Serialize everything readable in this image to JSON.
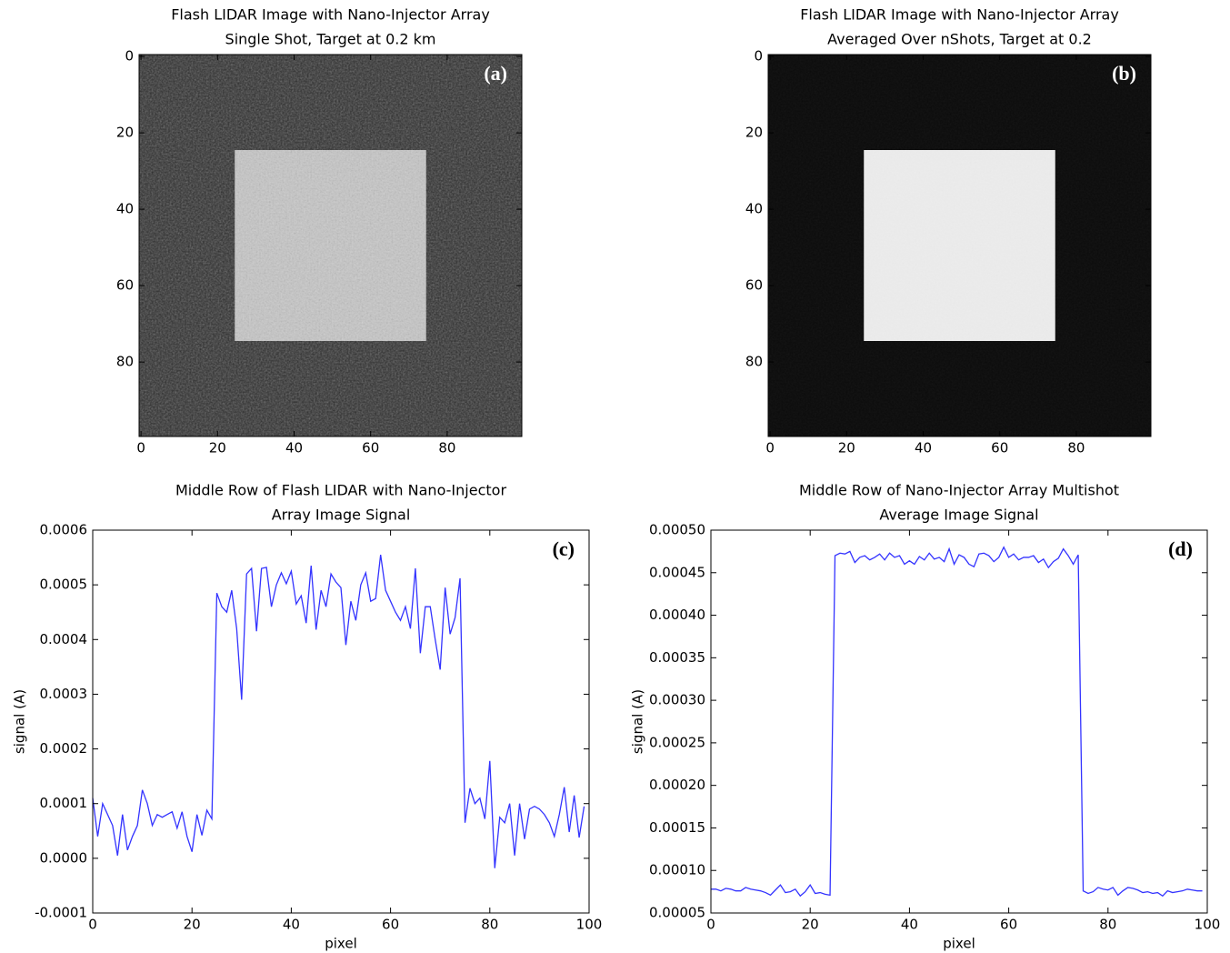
{
  "chart_data": [
    {
      "type": "image",
      "title": [
        "Flash LIDAR Image with Nano-Injector Array",
        "Single Shot, Target at 0.2 km"
      ],
      "panel_label": "(a)",
      "background_color": "#2b2b2b",
      "target": {
        "x": [
          24.5,
          74.5
        ],
        "y": [
          24.5,
          74.5
        ],
        "color": "#c6c6c6"
      },
      "noise": 0.45,
      "xlim": [
        -0.5,
        99.5
      ],
      "ylim": [
        99.5,
        -0.5
      ],
      "xticks": [
        0,
        20,
        40,
        60,
        80
      ],
      "yticks": [
        0,
        20,
        40,
        60,
        80
      ]
    },
    {
      "type": "image",
      "title": [
        "Flash LIDAR Image with Nano-Injector Array",
        "Averaged Over nShots, Target at 0.2"
      ],
      "panel_label": "(b)",
      "background_color": "#0b0b0b",
      "target": {
        "x": [
          24.5,
          74.5
        ],
        "y": [
          24.5,
          74.5
        ],
        "color": "#ececec"
      },
      "noise": 0.06,
      "xlim": [
        -0.5,
        99.5
      ],
      "ylim": [
        99.5,
        -0.5
      ],
      "xticks": [
        0,
        20,
        40,
        60,
        80
      ],
      "yticks": [
        0,
        20,
        40,
        60,
        80
      ]
    },
    {
      "type": "line",
      "title": [
        "Middle Row of Flash LIDAR with Nano-Injector",
        "Array Image Signal"
      ],
      "panel_label": "(c)",
      "xlabel": "pixel",
      "ylabel": "signal (A)",
      "color": "#3333ff",
      "x": [
        0,
        1,
        2,
        3,
        4,
        5,
        6,
        7,
        8,
        9,
        10,
        11,
        12,
        13,
        14,
        15,
        16,
        17,
        18,
        19,
        20,
        21,
        22,
        23,
        24,
        25,
        26,
        27,
        28,
        29,
        30,
        31,
        32,
        33,
        34,
        35,
        36,
        37,
        38,
        39,
        40,
        41,
        42,
        43,
        44,
        45,
        46,
        47,
        48,
        49,
        50,
        51,
        52,
        53,
        54,
        55,
        56,
        57,
        58,
        59,
        60,
        61,
        62,
        63,
        64,
        65,
        66,
        67,
        68,
        69,
        70,
        71,
        72,
        73,
        74,
        75,
        76,
        77,
        78,
        79,
        80,
        81,
        82,
        83,
        84,
        85,
        86,
        87,
        88,
        89,
        90,
        91,
        92,
        93,
        94,
        95,
        96,
        97,
        98,
        99
      ],
      "values": [
        0.00011,
        4e-05,
        0.0001,
        8e-05,
        6e-05,
        5e-06,
        8e-05,
        1.5e-05,
        4e-05,
        6e-05,
        0.000125,
        0.0001,
        6e-05,
        8e-05,
        7.5e-05,
        8e-05,
        8.5e-05,
        5.5e-05,
        8.5e-05,
        4e-05,
        1.2e-05,
        8e-05,
        4.2e-05,
        8.8e-05,
        7.2e-05,
        0.000485,
        0.00046,
        0.00045,
        0.00049,
        0.00042,
        0.00029,
        0.00052,
        0.00053,
        0.000415,
        0.00053,
        0.000532,
        0.00046,
        0.0005,
        0.000522,
        0.000502,
        0.000525,
        0.000465,
        0.00048,
        0.00043,
        0.000535,
        0.000418,
        0.00049,
        0.00046,
        0.00052,
        0.000505,
        0.000495,
        0.00039,
        0.00047,
        0.000435,
        0.0005,
        0.000522,
        0.00047,
        0.000475,
        0.000555,
        0.00049,
        0.00047,
        0.00045,
        0.000435,
        0.00046,
        0.00042,
        0.00053,
        0.000375,
        0.00046,
        0.00046,
        0.0004,
        0.000345,
        0.000495,
        0.00041,
        0.00044,
        0.000512,
        6.5e-05,
        0.000128,
        0.0001,
        0.00011,
        7.2e-05,
        0.000178,
        -1.8e-05,
        7.5e-05,
        6.5e-05,
        0.0001,
        5e-06,
        0.0001,
        3.5e-05,
        9e-05,
        9.5e-05,
        9e-05,
        8e-05,
        6.5e-05,
        4e-05,
        8e-05,
        0.00013,
        4.8e-05,
        0.000115,
        3.8e-05,
        9.5e-05
      ],
      "xlim": [
        0,
        100
      ],
      "ylim": [
        -0.0001,
        0.0006
      ],
      "xticks": [
        0,
        20,
        40,
        60,
        80,
        100
      ],
      "yticks": [
        -0.0001,
        {
          "value": 0,
          "label": "0.0000"
        },
        0.0001,
        0.0002,
        0.0003,
        0.0004,
        0.0005,
        0.0006
      ]
    },
    {
      "type": "line",
      "title": [
        "Middle Row of Nano-Injector Array Multishot",
        "Average Image Signal"
      ],
      "panel_label": "(d)",
      "xlabel": "pixel",
      "ylabel": "signal (A)",
      "color": "#3333ff",
      "x": [
        0,
        1,
        2,
        3,
        4,
        5,
        6,
        7,
        8,
        9,
        10,
        11,
        12,
        13,
        14,
        15,
        16,
        17,
        18,
        19,
        20,
        21,
        22,
        23,
        24,
        25,
        26,
        27,
        28,
        29,
        30,
        31,
        32,
        33,
        34,
        35,
        36,
        37,
        38,
        39,
        40,
        41,
        42,
        43,
        44,
        45,
        46,
        47,
        48,
        49,
        50,
        51,
        52,
        53,
        54,
        55,
        56,
        57,
        58,
        59,
        60,
        61,
        62,
        63,
        64,
        65,
        66,
        67,
        68,
        69,
        70,
        71,
        72,
        73,
        74,
        75,
        76,
        77,
        78,
        79,
        80,
        81,
        82,
        83,
        84,
        85,
        86,
        87,
        88,
        89,
        90,
        91,
        92,
        93,
        94,
        95,
        96,
        97,
        98,
        99
      ],
      "values": [
        7.8e-05,
        7.8e-05,
        7.6e-05,
        7.9e-05,
        7.8e-05,
        7.6e-05,
        7.6e-05,
        8e-05,
        7.8e-05,
        7.7e-05,
        7.6e-05,
        7.4e-05,
        7.1e-05,
        7.7e-05,
        8.3e-05,
        7.4e-05,
        7.5e-05,
        7.8e-05,
        7e-05,
        7.5e-05,
        8.3e-05,
        7.3e-05,
        7.4e-05,
        7.2e-05,
        7.1e-05,
        0.00047,
        0.000473,
        0.000472,
        0.000475,
        0.000462,
        0.000468,
        0.00047,
        0.000465,
        0.000468,
        0.000472,
        0.000465,
        0.000473,
        0.000468,
        0.00047,
        0.00046,
        0.000464,
        0.00046,
        0.000469,
        0.000465,
        0.000473,
        0.000466,
        0.000468,
        0.000463,
        0.000478,
        0.00046,
        0.000471,
        0.000468,
        0.00046,
        0.000457,
        0.000472,
        0.000473,
        0.00047,
        0.000463,
        0.000468,
        0.00048,
        0.000468,
        0.000472,
        0.000465,
        0.000468,
        0.000468,
        0.00047,
        0.000462,
        0.000466,
        0.000456,
        0.000463,
        0.000467,
        0.000478,
        0.00047,
        0.00046,
        0.000471,
        7.6e-05,
        7.3e-05,
        7.5e-05,
        8e-05,
        7.8e-05,
        7.7e-05,
        8e-05,
        7.1e-05,
        7.6e-05,
        8e-05,
        7.9e-05,
        7.7e-05,
        7.4e-05,
        7.5e-05,
        7.3e-05,
        7.4e-05,
        7e-05,
        7.6e-05,
        7.4e-05,
        7.5e-05,
        7.6e-05,
        7.8e-05,
        7.7e-05,
        7.6e-05,
        7.6e-05
      ],
      "xlim": [
        0,
        100
      ],
      "ylim": [
        5e-05,
        0.0005
      ],
      "xticks": [
        0,
        20,
        40,
        60,
        80,
        100
      ],
      "yticks": [
        5e-05,
        {
          "value": 0.0001,
          "label": "0.00010"
        },
        0.00015,
        {
          "value": 0.0002,
          "label": "0.00020"
        },
        0.00025,
        {
          "value": 0.0003,
          "label": "0.00030"
        },
        0.00035,
        {
          "value": 0.0004,
          "label": "0.00040"
        },
        0.00045,
        {
          "value": 0.0005,
          "label": "0.00050"
        }
      ]
    }
  ]
}
